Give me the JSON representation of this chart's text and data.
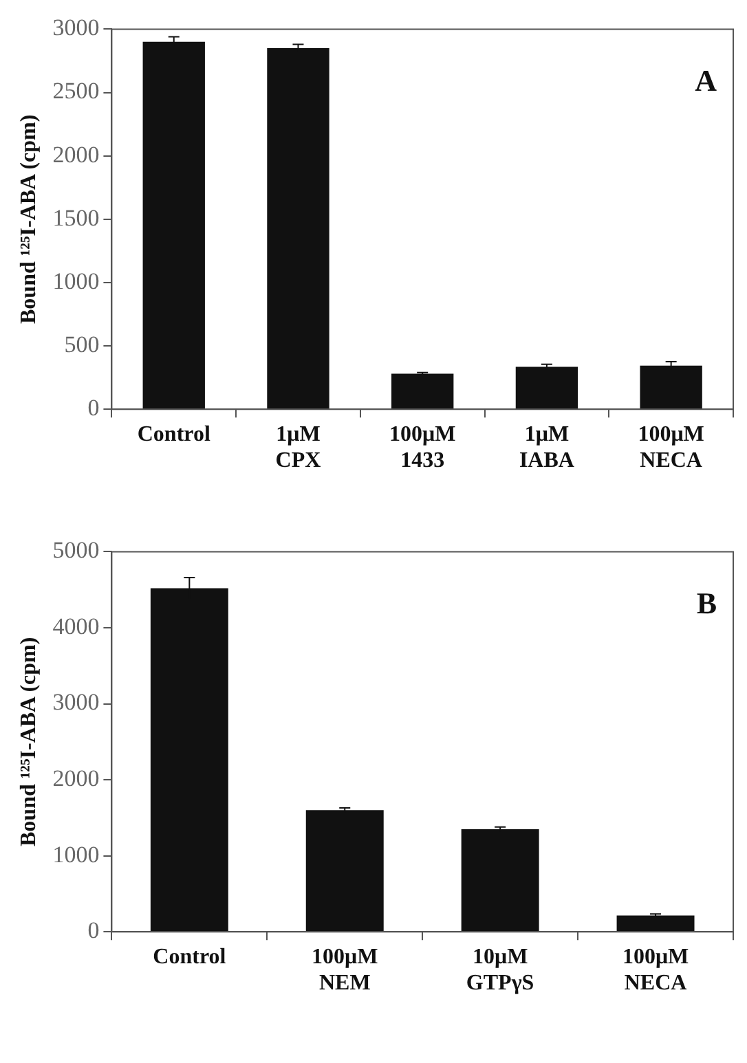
{
  "chart_data": [
    {
      "type": "bar",
      "ylabel": "Bound ¹²⁵I-ABA (cpm)",
      "categories": [
        "Control",
        "1μM\nCPX",
        "100μM\n1433",
        "1μM\nIABA",
        "100μM\nNECA"
      ],
      "values": [
        2900,
        2850,
        280,
        335,
        345
      ],
      "errors": [
        40,
        30,
        10,
        20,
        30
      ],
      "color": "#111111",
      "ylim": [
        0,
        3000
      ],
      "yticks": [
        0,
        500,
        1000,
        1500,
        2000,
        2500,
        3000
      ],
      "grid": false,
      "annotations": [
        "A"
      ]
    },
    {
      "type": "bar",
      "ylabel": "Bound ¹²⁵I-ABA (cpm)",
      "categories": [
        "Control",
        "100μM\nNEM",
        "10μM\nGTPγS",
        "100μM\nNECA"
      ],
      "values": [
        4520,
        1600,
        1350,
        215
      ],
      "errors": [
        140,
        30,
        30,
        20
      ],
      "color": "#111111",
      "ylim": [
        0,
        5000
      ],
      "yticks": [
        0,
        1000,
        2000,
        3000,
        4000,
        5000
      ],
      "grid": false,
      "annotations": [
        "B"
      ]
    }
  ]
}
